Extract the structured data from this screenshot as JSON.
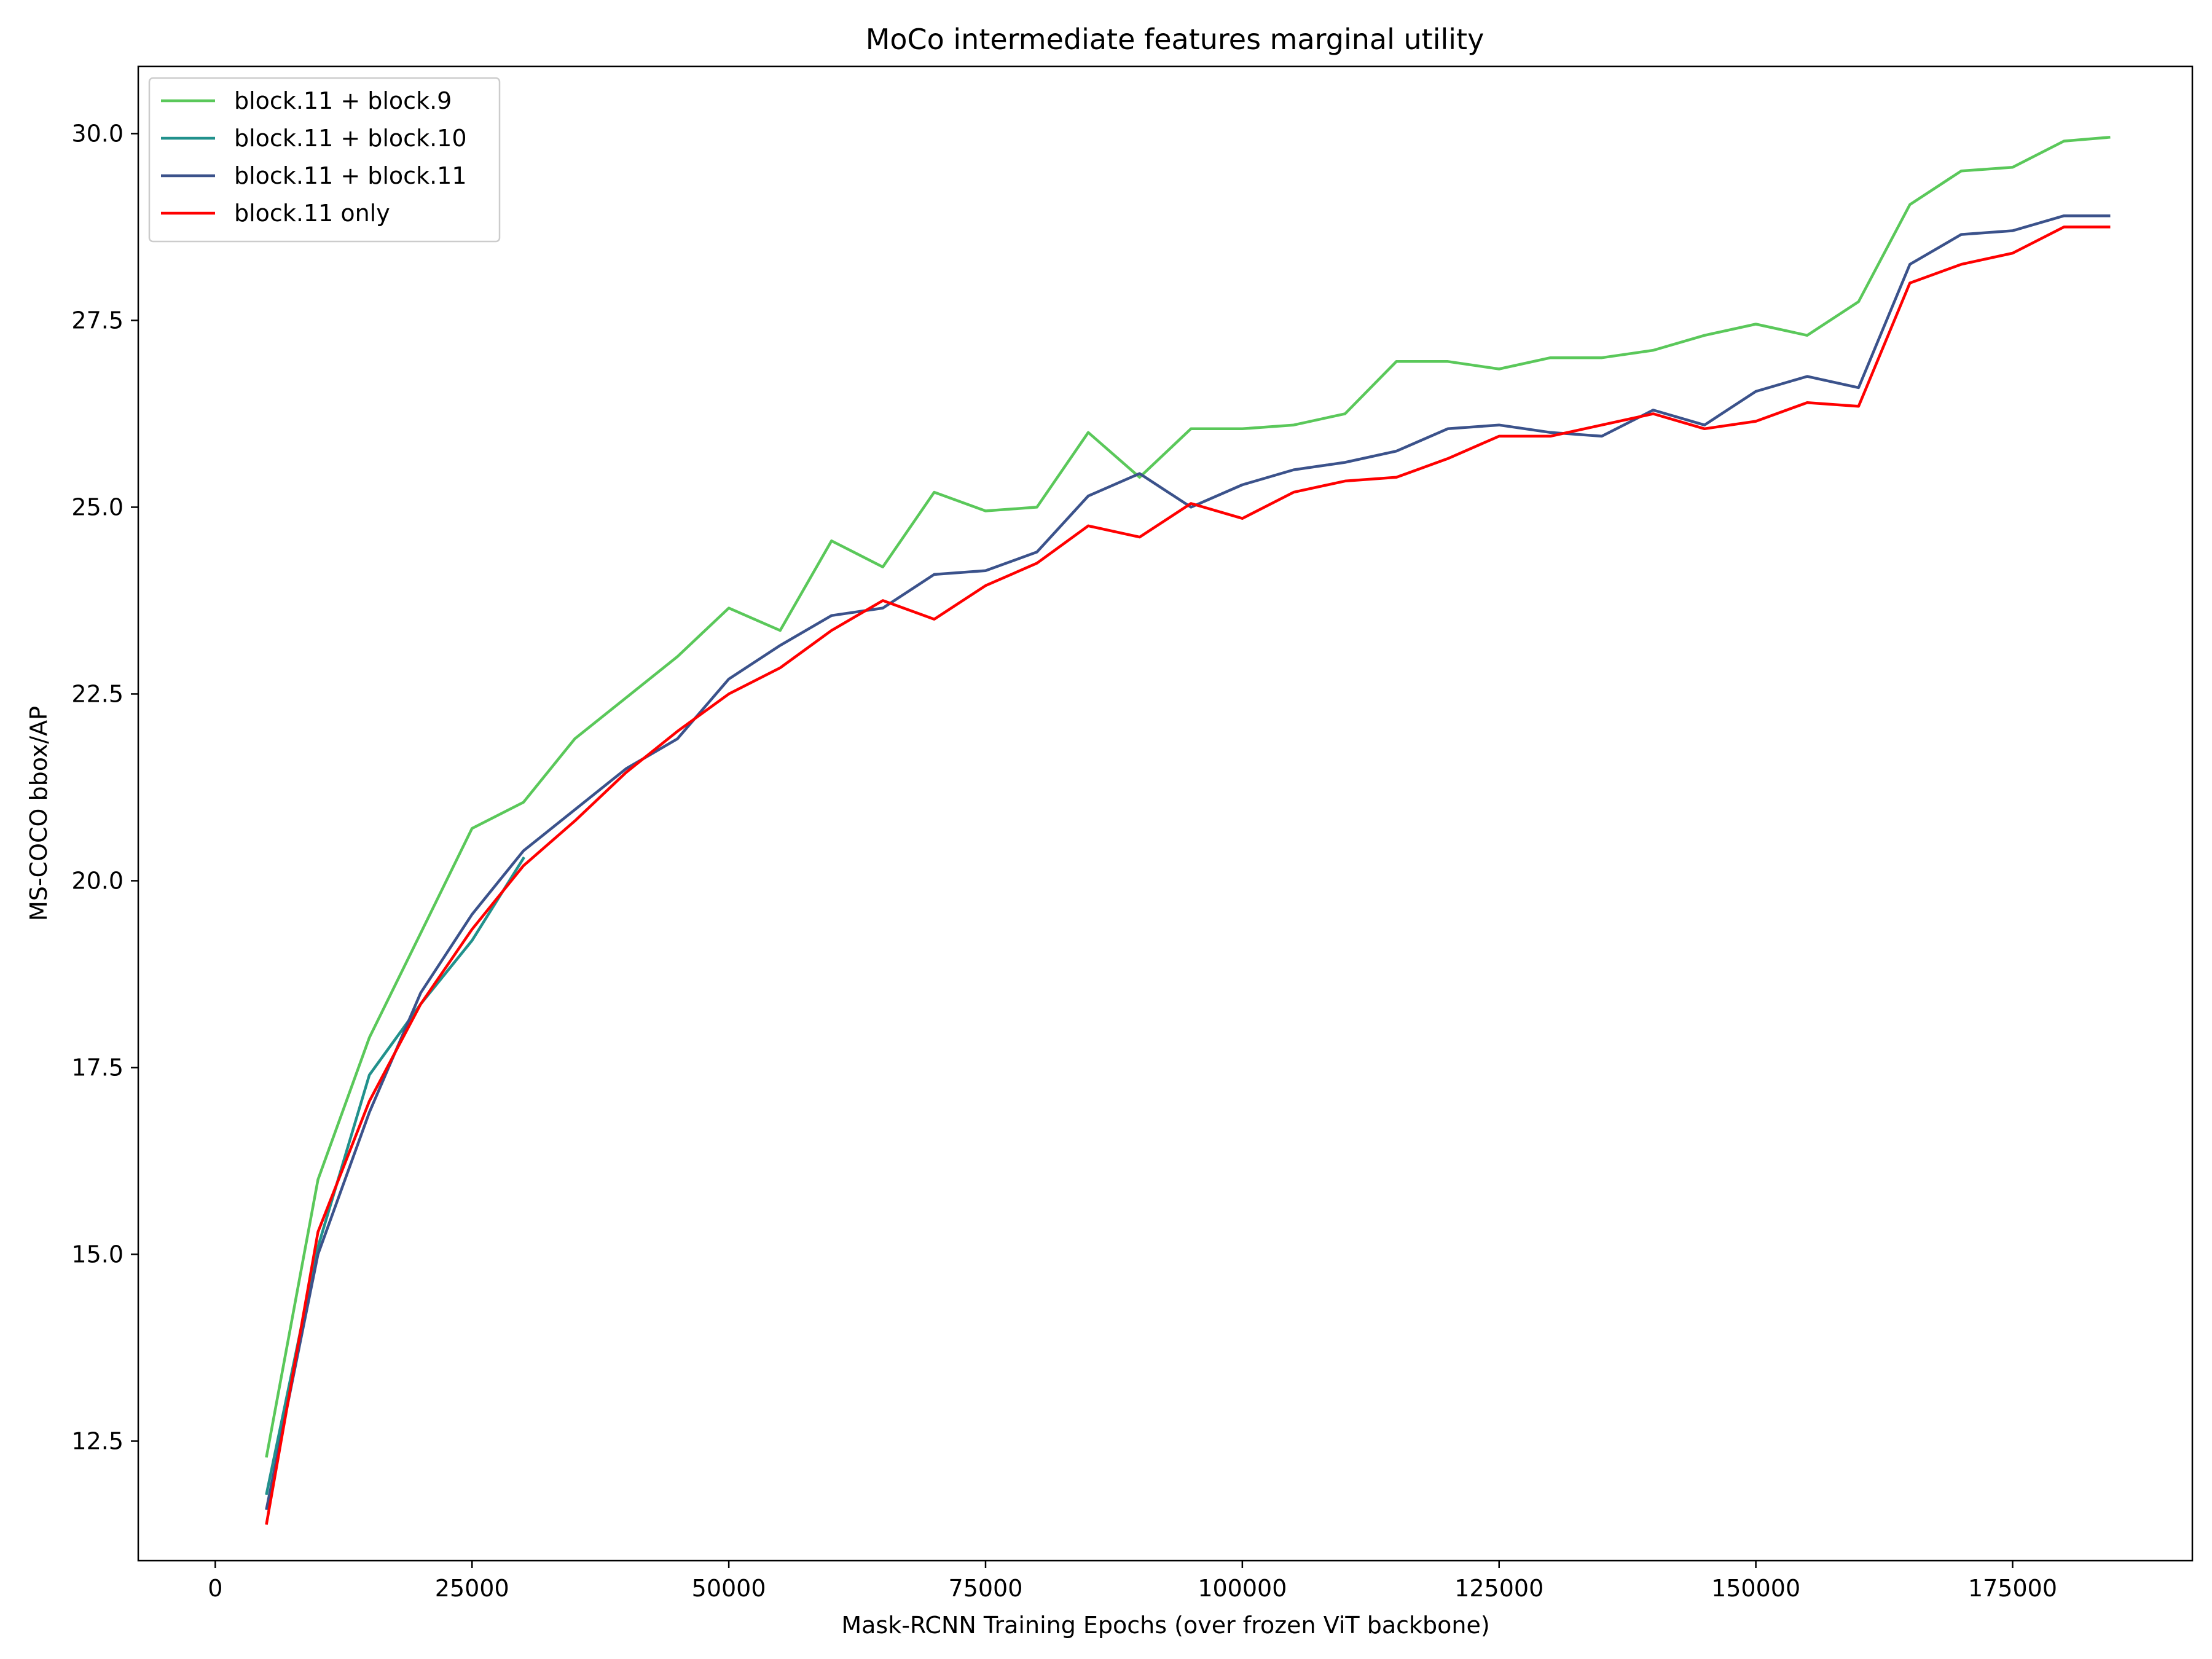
{
  "chart_data": {
    "type": "line",
    "title": "MoCo intermediate features marginal utility",
    "xlabel": "Mask-RCNN Training Epochs (over frozen ViT backbone)",
    "ylabel": "MS-COCO bbox/AP",
    "xlim": [
      -7500,
      192500
    ],
    "ylim": [
      10.9,
      30.9
    ],
    "xticks": [
      0,
      25000,
      50000,
      75000,
      100000,
      125000,
      150000,
      175000
    ],
    "xtick_labels": [
      "0",
      "25000",
      "50000",
      "75000",
      "100000",
      "125000",
      "150000",
      "175000"
    ],
    "yticks": [
      12.5,
      15.0,
      17.5,
      20.0,
      22.5,
      25.0,
      27.5,
      30.0
    ],
    "ytick_labels": [
      "12.5",
      "15.0",
      "17.5",
      "20.0",
      "22.5",
      "25.0",
      "27.5",
      "30.0"
    ],
    "grid": false,
    "legend_position": "top-left",
    "series": [
      {
        "name": "block.11 + block.9",
        "color": "#5ac85a",
        "x": [
          5000,
          10000,
          15000,
          20000,
          25000,
          30000,
          35000,
          40000,
          45000,
          50000,
          55000,
          60000,
          65000,
          70000,
          75000,
          80000,
          85000,
          90000,
          95000,
          100000,
          105000,
          110000,
          115000,
          120000,
          125000,
          130000,
          135000,
          140000,
          145000,
          150000,
          155000,
          160000,
          165000,
          170000,
          175000,
          180000,
          184375
        ],
        "y": [
          12.3,
          16.0,
          17.9,
          19.3,
          20.7,
          21.05,
          21.9,
          22.45,
          23.0,
          23.65,
          23.35,
          24.55,
          24.2,
          25.2,
          24.95,
          25.0,
          26.0,
          25.4,
          26.05,
          26.05,
          26.1,
          26.25,
          26.95,
          26.95,
          26.85,
          27.0,
          27.0,
          27.1,
          27.3,
          27.45,
          27.3,
          27.75,
          29.05,
          29.5,
          29.55,
          29.9,
          29.95
        ]
      },
      {
        "name": "block.11 + block.10",
        "color": "#21918c",
        "x": [
          5000,
          10000,
          15000,
          20000,
          25000,
          30000
        ],
        "y": [
          11.8,
          15.1,
          17.4,
          18.35,
          19.2,
          20.3
        ]
      },
      {
        "name": "block.11 + block.11",
        "color": "#3b528b",
        "x": [
          5000,
          10000,
          15000,
          20000,
          25000,
          30000,
          35000,
          40000,
          45000,
          50000,
          55000,
          60000,
          65000,
          70000,
          75000,
          80000,
          85000,
          90000,
          95000,
          100000,
          105000,
          110000,
          115000,
          120000,
          125000,
          130000,
          135000,
          140000,
          145000,
          150000,
          155000,
          160000,
          165000,
          170000,
          175000,
          180000,
          184375
        ],
        "y": [
          11.6,
          15.0,
          16.9,
          18.5,
          19.55,
          20.4,
          20.95,
          21.5,
          21.9,
          22.7,
          23.15,
          23.55,
          23.65,
          24.1,
          24.15,
          24.4,
          25.15,
          25.45,
          25.0,
          25.3,
          25.5,
          25.6,
          25.75,
          26.05,
          26.1,
          26.0,
          25.95,
          26.3,
          26.1,
          26.55,
          26.75,
          26.6,
          28.25,
          28.65,
          28.7,
          28.9,
          28.9
        ]
      },
      {
        "name": "block.11 only",
        "color": "#ff0000",
        "x": [
          5000,
          10000,
          15000,
          20000,
          25000,
          30000,
          35000,
          40000,
          45000,
          50000,
          55000,
          60000,
          65000,
          70000,
          75000,
          80000,
          85000,
          90000,
          95000,
          100000,
          105000,
          110000,
          115000,
          120000,
          125000,
          130000,
          135000,
          140000,
          145000,
          150000,
          155000,
          160000,
          165000,
          170000,
          175000,
          180000,
          184375
        ],
        "y": [
          11.4,
          15.3,
          17.05,
          18.35,
          19.35,
          20.2,
          20.8,
          21.45,
          22.0,
          22.5,
          22.85,
          23.35,
          23.75,
          23.5,
          23.95,
          24.25,
          24.75,
          24.6,
          25.05,
          24.85,
          25.2,
          25.35,
          25.4,
          25.65,
          25.95,
          25.95,
          26.1,
          26.25,
          26.05,
          26.15,
          26.4,
          26.35,
          28.0,
          28.25,
          28.4,
          28.75,
          28.75
        ]
      }
    ]
  }
}
